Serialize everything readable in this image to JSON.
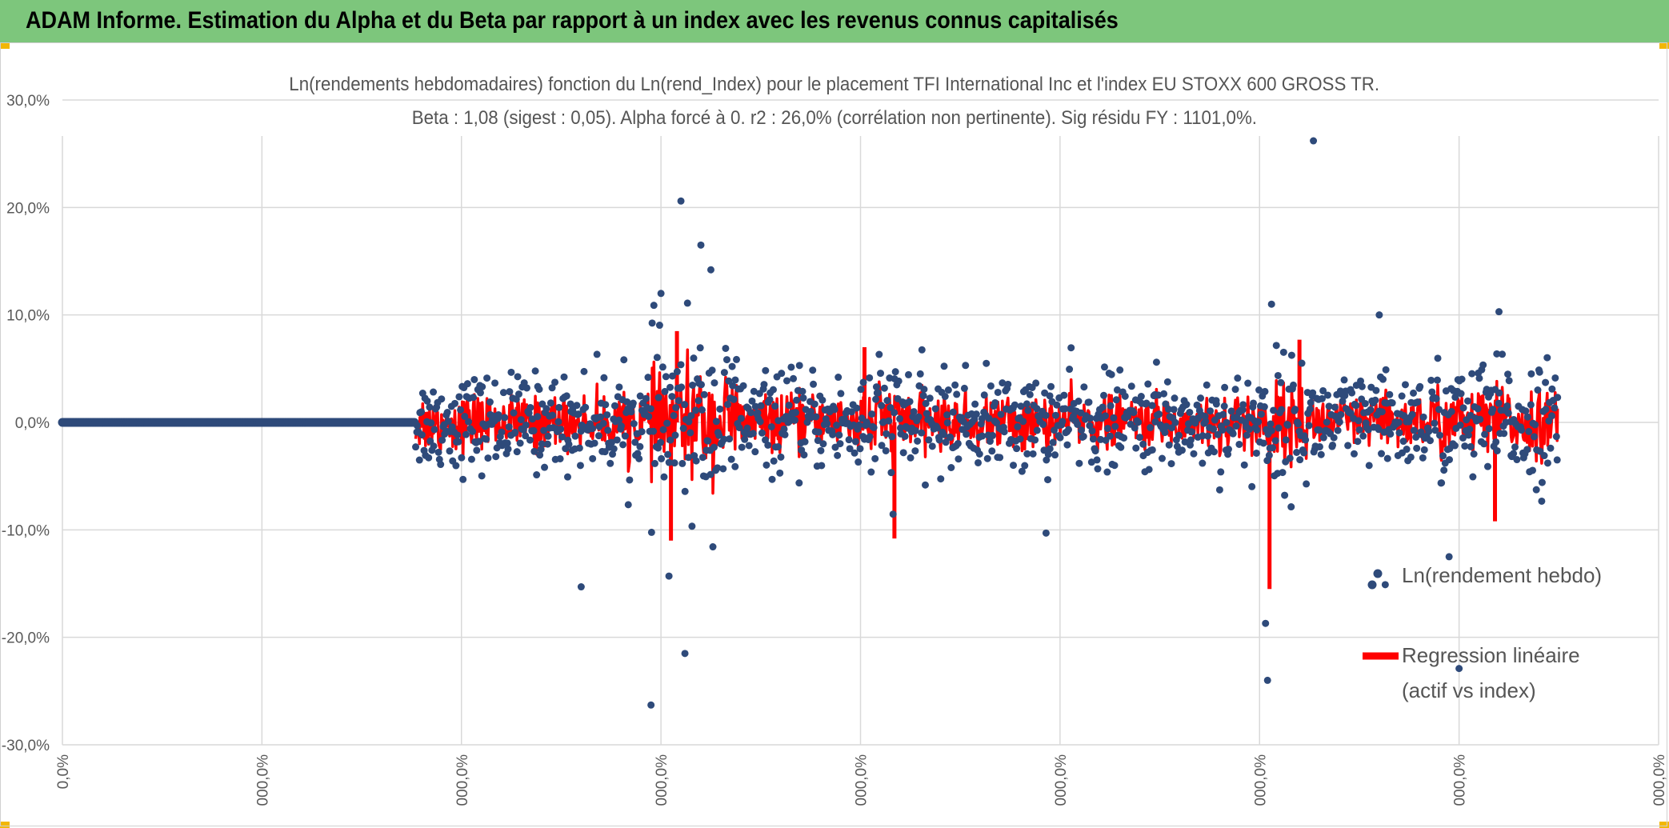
{
  "header": {
    "title": "ADAM Informe. Estimation du Alpha et du Beta par rapport à un index avec les revenus connus capitalisés"
  },
  "colors": {
    "header_bg": "#7dc67c",
    "scatter": "#2e4a7a",
    "regression": "#ff0000",
    "grid": "#d9d9d9",
    "axis_text": "#595959"
  },
  "chart_data": {
    "type": "scatter",
    "title": "Ln(rendements hebdomadaires) fonction du Ln(rend_Index) pour le placement TFI International Inc et l'index EU STOXX 600 GROSS TR.",
    "subtitle": "Beta : 1,08 (sigest : 0,05). Alpha forcé à 0. r2 : 26,0% (corrélation non pertinente). Sig résidu FY : 1101,0%.",
    "xlabel": "",
    "ylabel": "",
    "ylim": [
      -30,
      30
    ],
    "xlim": [
      0,
      8
    ],
    "y_ticks": [
      {
        "value": 30,
        "label": "30,0%"
      },
      {
        "value": 20,
        "label": "20,0%"
      },
      {
        "value": 10,
        "label": "10,0%"
      },
      {
        "value": 0,
        "label": "0,0%"
      },
      {
        "value": -10,
        "label": "-10,0%"
      },
      {
        "value": -20,
        "label": "-20,0%"
      },
      {
        "value": -30,
        "label": "-30,0%"
      }
    ],
    "x_ticks": [
      {
        "value": 0,
        "label": "0,0%"
      },
      {
        "value": 1,
        "label": "000,0%"
      },
      {
        "value": 2,
        "label": "000,0%"
      },
      {
        "value": 3,
        "label": "000,0%"
      },
      {
        "value": 4,
        "label": "000,0%"
      },
      {
        "value": 5,
        "label": "000,0%"
      },
      {
        "value": 6,
        "label": "000,0%"
      },
      {
        "value": 7,
        "label": "000,0%"
      },
      {
        "value": 8,
        "label": "000,0%"
      }
    ],
    "grid": true,
    "legend_position": "right",
    "series": [
      {
        "name": "Ln(rendement hebdo)",
        "kind": "scatter",
        "flat_segment": {
          "x_start": 0.0,
          "x_end": 1.77,
          "y": 0.0
        },
        "active_range": {
          "x_start": 1.77,
          "x_end": 7.5
        },
        "notable_points": [
          [
            2.6,
            -15.3
          ],
          [
            2.95,
            -26.3
          ],
          [
            3.0,
            12.0
          ],
          [
            3.1,
            20.6
          ],
          [
            3.2,
            16.5
          ],
          [
            3.25,
            14.2
          ],
          [
            3.12,
            -21.5
          ],
          [
            3.04,
            -14.3
          ],
          [
            4.93,
            -10.3
          ],
          [
            6.03,
            -18.7
          ],
          [
            6.04,
            -24.0
          ],
          [
            6.06,
            11.0
          ],
          [
            6.27,
            26.2
          ],
          [
            7.0,
            -22.9
          ],
          [
            6.95,
            -12.5
          ],
          [
            7.2,
            10.3
          ],
          [
            6.63,
            -15.1
          ],
          [
            6.6,
            10.0
          ]
        ]
      },
      {
        "name": "Regression linéaire (actif vs index)",
        "kind": "line",
        "notable_points": [
          [
            3.08,
            8.5
          ],
          [
            3.05,
            -11.0
          ],
          [
            4.17,
            -10.8
          ],
          [
            4.02,
            7.0
          ],
          [
            6.05,
            -15.5
          ],
          [
            6.2,
            7.7
          ],
          [
            7.18,
            -9.2
          ]
        ]
      }
    ],
    "legend": [
      {
        "label": "Ln(rendement hebdo)"
      },
      {
        "label_line1": "Regression linéaire",
        "label_line2": "(actif vs index)"
      }
    ]
  }
}
